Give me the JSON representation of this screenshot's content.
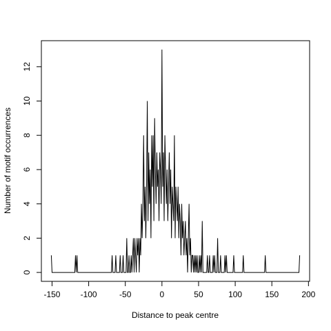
{
  "chart_data": {
    "type": "line",
    "xlabel": "Distance to peak centre",
    "ylabel": "Number of motif occurrences",
    "color": "#000000",
    "x": [
      -151,
      -150,
      -119,
      -118,
      -117,
      -116,
      -115,
      -69,
      -68,
      -67,
      -64,
      -63,
      -62,
      -58,
      -57,
      -56,
      -54,
      -53,
      -52,
      -49,
      -48,
      -47,
      -46,
      -45,
      -44,
      -43,
      -42,
      -41,
      -40,
      -39,
      -38,
      -37,
      -36,
      -35,
      -34,
      -33,
      -32,
      -31,
      -30,
      -29,
      -28,
      -27,
      -26,
      -25,
      -24,
      -23,
      -22,
      -21,
      -20,
      -19,
      -18,
      -17,
      -16,
      -15,
      -14,
      -13,
      -12,
      -11,
      -10,
      -9,
      -8,
      -7,
      -6,
      -5,
      -4,
      -3,
      -2,
      -1,
      0,
      1,
      2,
      3,
      4,
      5,
      6,
      7,
      8,
      9,
      10,
      11,
      12,
      13,
      14,
      15,
      16,
      17,
      18,
      19,
      20,
      21,
      22,
      23,
      24,
      25,
      26,
      27,
      28,
      29,
      30,
      31,
      32,
      33,
      34,
      35,
      36,
      37,
      38,
      39,
      40,
      41,
      42,
      43,
      44,
      45,
      46,
      47,
      48,
      49,
      50,
      51,
      52,
      53,
      54,
      55,
      56,
      57,
      58,
      59,
      60,
      61,
      62,
      63,
      64,
      65,
      66,
      69,
      70,
      71,
      72,
      73,
      75,
      76,
      77,
      79,
      80,
      81,
      85,
      86,
      87,
      88,
      89,
      97,
      98,
      99,
      110,
      111,
      112,
      140,
      141,
      142,
      187,
      188
    ],
    "values": [
      1,
      0,
      0,
      1,
      0,
      1,
      0,
      0,
      1,
      0,
      0,
      1,
      0,
      0,
      1,
      0,
      0,
      1,
      0,
      0,
      2,
      0,
      0,
      1,
      0,
      0,
      1,
      0,
      1,
      2,
      0,
      2,
      1,
      0,
      2,
      1,
      2,
      0,
      2,
      1,
      4,
      2,
      4,
      8,
      3,
      5,
      2,
      5,
      10,
      3,
      7,
      4,
      6,
      2,
      8,
      5,
      8,
      3,
      9,
      6,
      4,
      7,
      5,
      6,
      3,
      7,
      6,
      4,
      13,
      5,
      7,
      3,
      8,
      6,
      4,
      6,
      3,
      5,
      7,
      4,
      6,
      2,
      5,
      4,
      3,
      8,
      2,
      5,
      4,
      3,
      5,
      2,
      4,
      3,
      1,
      4,
      2,
      3,
      1,
      2,
      3,
      1,
      2,
      0,
      2,
      4,
      1,
      2,
      0,
      1,
      1,
      0,
      1,
      0,
      1,
      0,
      1,
      0,
      0,
      1,
      0,
      1,
      0,
      3,
      0,
      0,
      0,
      0,
      0,
      0,
      1,
      0,
      0,
      1,
      0,
      0,
      1,
      0,
      1,
      0,
      0,
      2,
      0,
      0,
      1,
      0,
      0,
      1,
      0,
      1,
      0,
      0,
      1,
      0,
      0,
      1,
      0,
      0,
      1,
      0,
      0,
      1
    ],
    "xlim": [
      -164.56,
      201.56
    ],
    "ylim": [
      -0.52,
      13.52
    ],
    "xticks": [
      -150,
      -100,
      -50,
      0,
      50,
      100,
      150,
      200
    ],
    "yticks": [
      0,
      2,
      4,
      6,
      8,
      10,
      12
    ]
  }
}
